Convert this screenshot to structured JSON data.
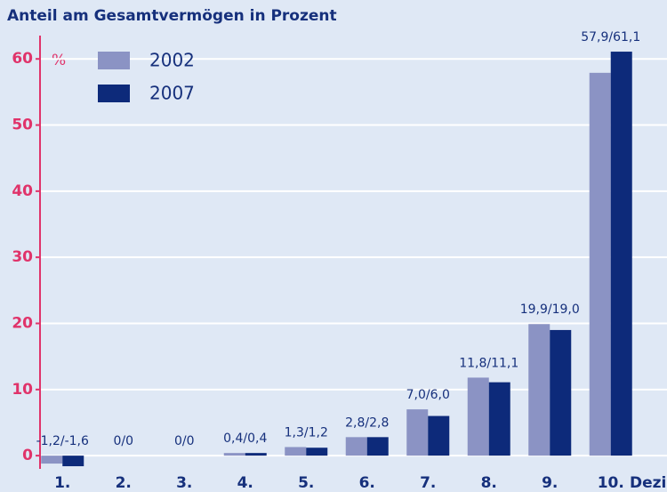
{
  "chart_data": {
    "type": "bar",
    "title": "Anteil am Gesamtvermögen in Prozent",
    "ylabel": "%",
    "xlabel": "Dezil",
    "categories": [
      "1.",
      "2.",
      "3.",
      "4.",
      "5.",
      "6.",
      "7.",
      "8.",
      "9.",
      "10."
    ],
    "series": [
      {
        "name": "2002",
        "color": "#8b93c4",
        "values": [
          -1.2,
          0,
          0,
          0.4,
          1.3,
          2.8,
          7.0,
          11.8,
          19.9,
          57.9
        ]
      },
      {
        "name": "2007",
        "color": "#0d2a7a",
        "values": [
          -1.6,
          0,
          0,
          0.4,
          1.2,
          2.8,
          6.0,
          11.1,
          19.0,
          61.1
        ]
      }
    ],
    "value_labels": [
      "-1,2/-1,6",
      "0/0",
      "0/0",
      "0,4/0,4",
      "1,3/1,2",
      "2,8/2,8",
      "7,0/6,0",
      "11,8/11,1",
      "19,9/19,0",
      "57,9/61,1"
    ],
    "ylim": [
      -2,
      64
    ],
    "yticks": [
      0,
      10,
      20,
      30,
      40,
      50,
      60
    ],
    "grid": true
  }
}
